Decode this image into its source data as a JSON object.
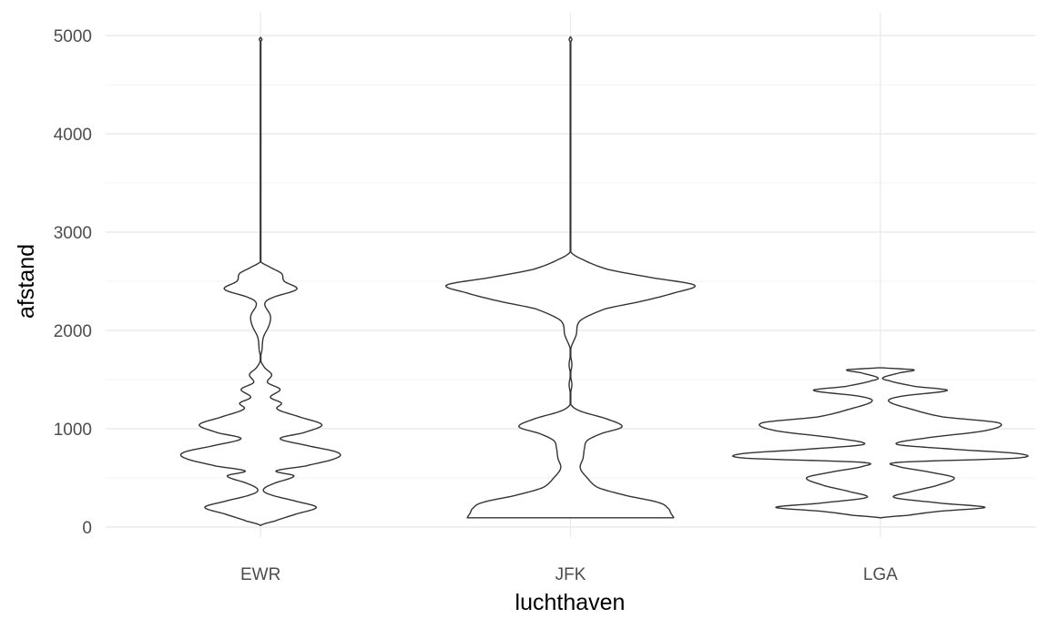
{
  "chart_data": {
    "type": "violin",
    "title": "",
    "xlabel": "luchthaven",
    "ylabel": "afstand",
    "ylim": [
      -50,
      5120
    ],
    "y_ticks": [
      0,
      1000,
      2000,
      3000,
      4000,
      5000
    ],
    "y_tick_labels": [
      "0",
      "1000",
      "2000",
      "3000",
      "4000",
      "5000"
    ],
    "y_minor_ticks": [
      500,
      1500,
      2500,
      3500,
      4500
    ],
    "grid": true,
    "colors": {
      "outline": "#333333",
      "fill": "#ffffff",
      "grid": "#ebebeb"
    },
    "categories": [
      "EWR",
      "JFK",
      "LGA"
    ],
    "series": [
      {
        "category": "EWR",
        "profile": [
          [
            17,
            0.0
          ],
          [
            60,
            0.1
          ],
          [
            130,
            0.25
          ],
          [
            200,
            0.4
          ],
          [
            260,
            0.26
          ],
          [
            330,
            0.07
          ],
          [
            380,
            0.02
          ],
          [
            440,
            0.09
          ],
          [
            520,
            0.24
          ],
          [
            570,
            0.11
          ],
          [
            620,
            0.32
          ],
          [
            700,
            0.54
          ],
          [
            760,
            0.55
          ],
          [
            830,
            0.33
          ],
          [
            900,
            0.14
          ],
          [
            960,
            0.31
          ],
          [
            1040,
            0.44
          ],
          [
            1120,
            0.28
          ],
          [
            1200,
            0.12
          ],
          [
            1260,
            0.15
          ],
          [
            1320,
            0.07
          ],
          [
            1400,
            0.14
          ],
          [
            1470,
            0.05
          ],
          [
            1550,
            0.08
          ],
          [
            1620,
            0.03
          ],
          [
            1700,
            0.0
          ],
          [
            1800,
            0.01
          ],
          [
            1930,
            0.02
          ],
          [
            2050,
            0.06
          ],
          [
            2150,
            0.07
          ],
          [
            2270,
            0.03
          ],
          [
            2330,
            0.08
          ],
          [
            2420,
            0.26
          ],
          [
            2500,
            0.17
          ],
          [
            2580,
            0.15
          ],
          [
            2650,
            0.06
          ],
          [
            2700,
            0.0
          ],
          [
            3000,
            0.0
          ],
          [
            4500,
            0.0
          ],
          [
            4940,
            0.0
          ],
          [
            4960,
            0.01
          ],
          [
            4980,
            0.0
          ]
        ]
      },
      {
        "category": "JFK",
        "profile": [
          [
            94,
            0.74
          ],
          [
            140,
            0.72
          ],
          [
            190,
            0.7
          ],
          [
            250,
            0.63
          ],
          [
            320,
            0.4
          ],
          [
            400,
            0.2
          ],
          [
            500,
            0.12
          ],
          [
            600,
            0.07
          ],
          [
            700,
            0.09
          ],
          [
            800,
            0.1
          ],
          [
            880,
            0.12
          ],
          [
            950,
            0.22
          ],
          [
            1020,
            0.37
          ],
          [
            1100,
            0.26
          ],
          [
            1180,
            0.07
          ],
          [
            1250,
            0.0
          ],
          [
            1350,
            0.0
          ],
          [
            1450,
            0.01
          ],
          [
            1550,
            0.0
          ],
          [
            1650,
            0.01
          ],
          [
            1800,
            0.0
          ],
          [
            1950,
            0.04
          ],
          [
            2100,
            0.07
          ],
          [
            2220,
            0.25
          ],
          [
            2300,
            0.52
          ],
          [
            2380,
            0.74
          ],
          [
            2460,
            0.89
          ],
          [
            2540,
            0.57
          ],
          [
            2620,
            0.27
          ],
          [
            2720,
            0.09
          ],
          [
            2800,
            0.0
          ],
          [
            3200,
            0.0
          ],
          [
            4000,
            0.0
          ],
          [
            4930,
            0.0
          ],
          [
            4960,
            0.01
          ],
          [
            4985,
            0.0
          ]
        ]
      },
      {
        "category": "LGA",
        "profile": [
          [
            94,
            0.0
          ],
          [
            120,
            0.2
          ],
          [
            160,
            0.42
          ],
          [
            200,
            0.75
          ],
          [
            240,
            0.45
          ],
          [
            300,
            0.1
          ],
          [
            360,
            0.22
          ],
          [
            420,
            0.4
          ],
          [
            500,
            0.53
          ],
          [
            560,
            0.35
          ],
          [
            620,
            0.12
          ],
          [
            660,
            0.15
          ],
          [
            700,
            0.96
          ],
          [
            745,
            1.0
          ],
          [
            790,
            0.54
          ],
          [
            840,
            0.12
          ],
          [
            900,
            0.3
          ],
          [
            980,
            0.75
          ],
          [
            1060,
            0.85
          ],
          [
            1120,
            0.45
          ],
          [
            1200,
            0.22
          ],
          [
            1280,
            0.06
          ],
          [
            1330,
            0.15
          ],
          [
            1390,
            0.48
          ],
          [
            1430,
            0.25
          ],
          [
            1490,
            0.06
          ],
          [
            1520,
            0.02
          ],
          [
            1570,
            0.14
          ],
          [
            1600,
            0.24
          ],
          [
            1620,
            0.02
          ]
        ]
      }
    ]
  }
}
